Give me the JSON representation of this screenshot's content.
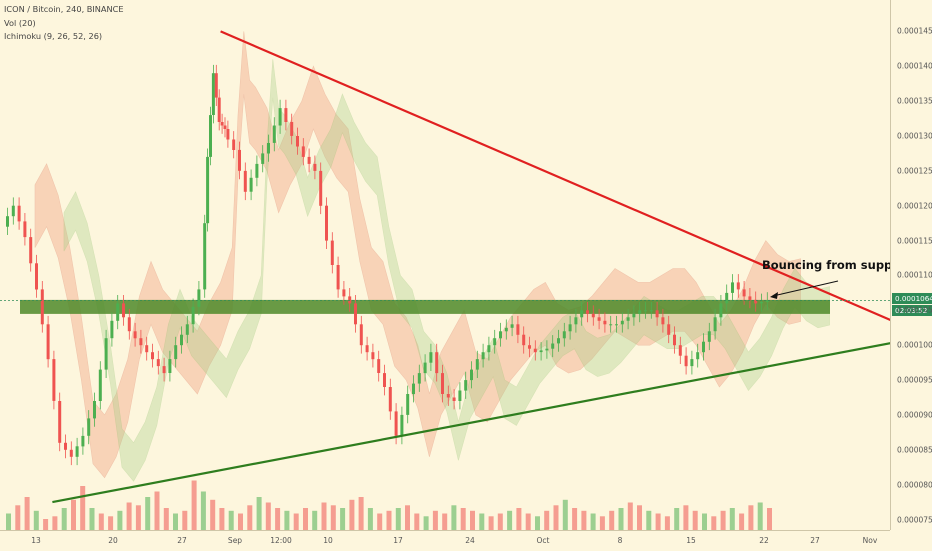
{
  "legend": {
    "symbol": "ICON / Bitcoin, 240, BINANCE",
    "volume": "Vol (20)",
    "ichimoku": "Ichimoku (9, 26, 52, 26)"
  },
  "annotation": "Bouncing from support",
  "current_price": "0.0001064",
  "countdown": "02:03:52",
  "colors": {
    "background": "#fdf6dd",
    "resistance_line": "#e02020",
    "support_line": "#2e7d1e",
    "support_zone": "#4f8a2a",
    "candle_up": "#4caf50",
    "candle_down": "#ef5350",
    "cloud_bear": "#f4a98a",
    "cloud_bull": "#a9cf8a",
    "price_label": "#2e8b57"
  },
  "chart_data": {
    "type": "candlestick",
    "y_ticks": [
      "0.0001450",
      "0.0001400",
      "0.0001350",
      "0.0001300",
      "0.0001250",
      "0.0001200",
      "0.0001150",
      "0.0001100",
      "0.0001050",
      "0.0001000",
      "0.0000950",
      "0.0000900",
      "0.0000850",
      "0.0000800",
      "0.0000750"
    ],
    "x_ticks": [
      "13",
      "20",
      "27",
      "Sep",
      "12:00",
      "10",
      "17",
      "24",
      "Oct",
      "8",
      "15",
      "22",
      "27",
      "Nov"
    ],
    "ylim": [
      7.35e-05,
      0.0001495
    ],
    "grid": false,
    "price_path": [
      [
        0,
        0.000117
      ],
      [
        2,
        0.00012
      ],
      [
        4,
        0.0001155
      ],
      [
        6,
        0.000108
      ],
      [
        8,
        9.8e-05
      ],
      [
        10,
        8.6e-05
      ],
      [
        12,
        8.4e-05
      ],
      [
        14,
        8.7e-05
      ],
      [
        16,
        9.2e-05
      ],
      [
        18,
        0.000101
      ],
      [
        20,
        0.000106
      ],
      [
        22,
        0.000102
      ],
      [
        24,
        0.0001
      ],
      [
        26,
        9.8e-05
      ],
      [
        28,
        9.6e-05
      ],
      [
        30,
        0.0001
      ],
      [
        32,
        0.000103
      ],
      [
        34,
        0.000108
      ],
      [
        35,
        0.000127
      ],
      [
        36,
        0.000139
      ],
      [
        37,
        0.000132
      ],
      [
        38,
        0.000131
      ],
      [
        40,
        0.000128
      ],
      [
        42,
        0.000122
      ],
      [
        44,
        0.000126
      ],
      [
        46,
        0.000129
      ],
      [
        48,
        0.000134
      ],
      [
        50,
        0.00013
      ],
      [
        52,
        0.000127
      ],
      [
        54,
        0.000125
      ],
      [
        56,
        0.000115
      ],
      [
        58,
        0.000108
      ],
      [
        60,
        0.000106
      ],
      [
        62,
        0.0001
      ],
      [
        64,
        9.8e-05
      ],
      [
        66,
        9.4e-05
      ],
      [
        68,
        8.7e-05
      ],
      [
        70,
        9.3e-05
      ],
      [
        72,
        9.6e-05
      ],
      [
        74,
        9.9e-05
      ],
      [
        76,
        9.3e-05
      ],
      [
        78,
        9.2e-05
      ],
      [
        80,
        9.5e-05
      ],
      [
        82,
        9.8e-05
      ],
      [
        84,
        0.0001
      ],
      [
        86,
        0.000102
      ],
      [
        88,
        0.000103
      ],
      [
        90,
        0.0001
      ],
      [
        92,
        9.9e-05
      ],
      [
        94,
        9.95e-05
      ],
      [
        96,
        0.000101
      ],
      [
        98,
        0.000103
      ],
      [
        100,
        0.000105
      ],
      [
        102,
        0.000104
      ],
      [
        104,
        0.000103
      ],
      [
        106,
        0.000103
      ],
      [
        108,
        0.000104
      ],
      [
        110,
        0.000105
      ],
      [
        112,
        0.000105
      ],
      [
        114,
        0.000103
      ],
      [
        116,
        0.0001
      ],
      [
        118,
        9.7e-05
      ],
      [
        120,
        9.9e-05
      ],
      [
        122,
        0.000102
      ],
      [
        124,
        0.000106
      ],
      [
        126,
        0.000109
      ],
      [
        128,
        0.000107
      ],
      [
        130,
        0.000106
      ],
      [
        132,
        0.0001064
      ]
    ],
    "volume": [
      30,
      45,
      60,
      35,
      20,
      25,
      40,
      55,
      80,
      40,
      30,
      25,
      35,
      50,
      45,
      60,
      70,
      40,
      30,
      35,
      90,
      70,
      55,
      40,
      35,
      30,
      45,
      60,
      50,
      40,
      35,
      30,
      40,
      35,
      50,
      45,
      40,
      55,
      60,
      40,
      30,
      35,
      40,
      45,
      30,
      25,
      35,
      30,
      45,
      40,
      35,
      30,
      25,
      30,
      35,
      40,
      30,
      25,
      35,
      45,
      55,
      40,
      35,
      30,
      25,
      35,
      40,
      50,
      45,
      35,
      30,
      25,
      40,
      45,
      35,
      30,
      25,
      35,
      40,
      30,
      45,
      50,
      40,
      35,
      60,
      45,
      40,
      30,
      25,
      35,
      40,
      30,
      50,
      45,
      35,
      30
    ],
    "support_zone": [
      0.0001055,
      0.0001065
    ],
    "resistance_line": [
      [
        37,
        0.000145
      ],
      [
        157,
        0.000102
      ]
    ],
    "support_line": [
      [
        8,
        7.75e-05
      ],
      [
        157,
        0.000101
      ]
    ],
    "annotations": [
      "Bouncing from support"
    ]
  }
}
